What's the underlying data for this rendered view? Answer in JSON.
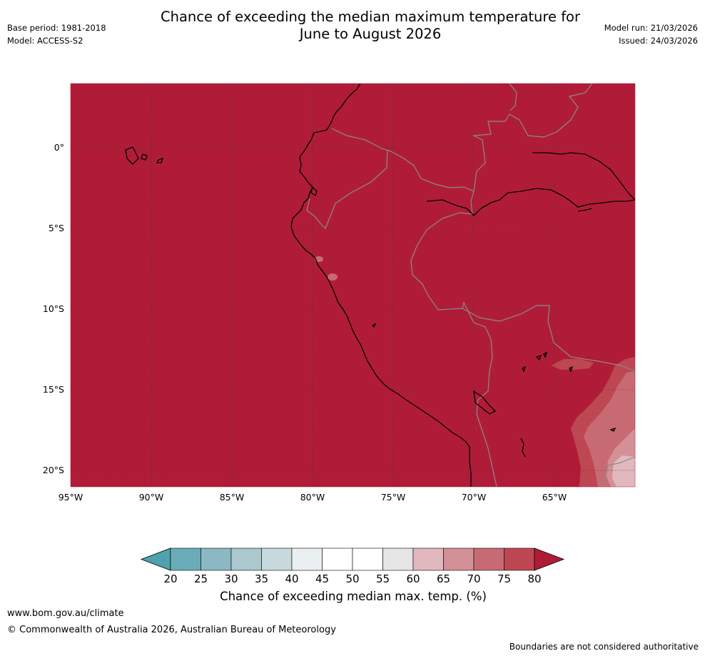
{
  "title": {
    "line1": "Chance of exceeding the median maximum temperature for",
    "line2": "June to August 2026"
  },
  "meta_left": {
    "base_period": "Base period: 1981-2018",
    "model": "Model: ACCESS-S2"
  },
  "meta_right": {
    "model_run": "Model run: 21/03/2026",
    "issued": "Issued: 24/03/2026"
  },
  "map": {
    "lon_range": [
      -95,
      -60
    ],
    "lat_range": [
      -21,
      4
    ],
    "dominant_category": "> 80",
    "lat_ticks": [
      {
        "value": 0,
        "label": "0°"
      },
      {
        "value": -5,
        "label": "5°S"
      },
      {
        "value": -10,
        "label": "10°S"
      },
      {
        "value": -15,
        "label": "15°S"
      },
      {
        "value": -20,
        "label": "20°S"
      }
    ],
    "lon_ticks": [
      {
        "value": -95,
        "label": "95°W"
      },
      {
        "value": -90,
        "label": "90°W"
      },
      {
        "value": -85,
        "label": "85°W"
      },
      {
        "value": -80,
        "label": "80°W"
      },
      {
        "value": -75,
        "label": "75°W"
      },
      {
        "value": -70,
        "label": "70°W"
      },
      {
        "value": -65,
        "label": "65°W"
      }
    ]
  },
  "legend": {
    "title": "Chance of exceeding median max. temp. (%)",
    "ticks": [
      "20",
      "25",
      "30",
      "35",
      "40",
      "45",
      "50",
      "55",
      "60",
      "65",
      "70",
      "75",
      "80"
    ],
    "colors": [
      "#6aacb8",
      "#8bb8c3",
      "#aac8cd",
      "#c7d9dd",
      "#eaf0f2",
      "#ffffff",
      "#ffffff",
      "#e6e6e6",
      "#e1b8bd",
      "#d49097",
      "#c86a73",
      "#bd4752"
    ],
    "under_color": "#4fa1ad",
    "over_color": "#b01c38"
  },
  "footer": {
    "url": "www.bom.gov.au/climate",
    "copyright": "© Commonwealth of Australia 2026, Australian Bureau of Meteorology",
    "note": "Boundaries are not considered authoritative"
  }
}
